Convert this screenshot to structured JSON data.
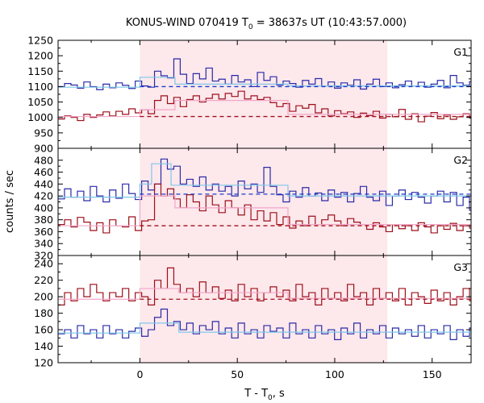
{
  "chart_data": {
    "type": "line",
    "title_main": "KONUS-WIND 070419 T",
    "title_sub": "0",
    "title_rest": " = 38637s UT (10:43:57.000)",
    "xlabel_main": "T - T",
    "xlabel_sub": "0",
    "xlabel_rest": ", s",
    "ylabel": "counts / sec",
    "xlim": [
      -42,
      170
    ],
    "xticks": [
      0,
      50,
      100,
      150
    ],
    "highlight_interval": [
      0,
      127
    ],
    "colors": {
      "blue": "#2a2aa6",
      "red": "#9c0f1a",
      "light_blue": "#7ec7ea",
      "pink": "#f2a6c8",
      "dashed_blue": "#1a3cc8",
      "dashed_red": "#a0111a",
      "highlight": "#fde8ec"
    },
    "panels": [
      {
        "label": "G1",
        "ylim": [
          900,
          1250
        ],
        "yticks": [
          900,
          950,
          1000,
          1050,
          1100,
          1150,
          1200,
          1250
        ],
        "series": [
          {
            "name": "G1 upper",
            "color": "blue",
            "x0": -42,
            "dx": 3.3,
            "values": [
              1100,
              1110,
              1105,
              1095,
              1115,
              1100,
              1090,
              1108,
              1096,
              1112,
              1104,
              1094,
              1118,
              1102,
              1098,
              1150,
              1135,
              1128,
              1190,
              1140,
              1110,
              1142,
              1125,
              1160,
              1118,
              1124,
              1108,
              1136,
              1115,
              1122,
              1100,
              1146,
              1120,
              1132,
              1105,
              1118,
              1110,
              1098,
              1120,
              1108,
              1126,
              1102,
              1115,
              1095,
              1112,
              1104,
              1122,
              1092,
              1108,
              1124,
              1100,
              1112,
              1096,
              1106,
              1118,
              1102,
              1114,
              1098,
              1108,
              1120,
              1096,
              1136,
              1112,
              1104,
              1116,
              1098
            ]
          },
          {
            "name": "G1 lower",
            "color": "red",
            "x0": -42,
            "dx": 3.3,
            "values": [
              995,
              1005,
              1000,
              990,
              1010,
              1000,
              1008,
              1018,
              1005,
              1020,
              1010,
              1028,
              1015,
              1025,
              1012,
              1055,
              1070,
              1045,
              1065,
              1035,
              1058,
              1070,
              1050,
              1062,
              1075,
              1060,
              1078,
              1068,
              1085,
              1060,
              1070,
              1058,
              1065,
              1048,
              1035,
              1045,
              1020,
              1038,
              1030,
              1042,
              1015,
              1028,
              1005,
              1022,
              1012,
              1018,
              1000,
              1014,
              1006,
              1020,
              998,
              1010,
              1002,
              1026,
              994,
              1012,
              986,
              1004,
              1016,
              996,
              1008,
              994,
              1002,
              1012,
              998,
              1018
            ]
          },
          {
            "name": "G1 upper fit",
            "color": "light_blue",
            "x": [
              -42,
              0,
              0,
              18,
              18,
              76,
              76,
              170
            ],
            "values": [
              1098,
              1098,
              1130,
              1130,
              1108,
              1108,
              1102,
              1102
            ]
          },
          {
            "name": "G1 lower fit",
            "color": "pink",
            "x": [
              -42,
              0,
              0,
              18,
              18,
              76,
              76,
              170
            ],
            "values": [
              1003,
              1003,
              1025,
              1025,
              1055,
              1055,
              1010,
              1010
            ]
          },
          {
            "name": "G1 upper background",
            "color": "dashed_blue",
            "dashed": true,
            "x": [
              0,
              170
            ],
            "values": [
              1100,
              1100
            ]
          },
          {
            "name": "G1 lower background",
            "color": "dashed_red",
            "dashed": true,
            "x": [
              0,
              170
            ],
            "values": [
              1003,
              1003
            ]
          }
        ]
      },
      {
        "label": "G2",
        "ylim": [
          320,
          500
        ],
        "yticks": [
          320,
          340,
          360,
          380,
          400,
          420,
          440,
          460,
          480
        ],
        "series": [
          {
            "name": "G2 upper",
            "color": "blue",
            "x0": -42,
            "dx": 3.3,
            "values": [
              415,
              432,
              418,
              428,
              412,
              436,
              420,
              410,
              430,
              416,
              440,
              424,
              414,
              445,
              430,
              440,
              482,
              465,
              470,
              440,
              448,
              436,
              452,
              430,
              440,
              428,
              436,
              420,
              445,
              432,
              440,
              426,
              468,
              436,
              422,
              410,
              428,
              418,
              434,
              420,
              425,
              412,
              430,
              418,
              426,
              410,
              424,
              436,
              418,
              412,
              428,
              404,
              420,
              430,
              414,
              426,
              418,
              408,
              420,
              428,
              410,
              426,
              404,
              418,
              396,
              420
            ]
          },
          {
            "name": "G2 lower",
            "color": "red",
            "x0": -42,
            "dx": 3.3,
            "values": [
              372,
              380,
              368,
              384,
              376,
              362,
              375,
              358,
              380,
              370,
              368,
              385,
              362,
              378,
              380,
              440,
              420,
              432,
              415,
              400,
              422,
              410,
              395,
              420,
              405,
              392,
              412,
              400,
              388,
              405,
              380,
              395,
              378,
              392,
              372,
              385,
              366,
              378,
              370,
              386,
              372,
              380,
              388,
              378,
              370,
              382,
              376,
              372,
              364,
              375,
              368,
              360,
              372,
              365,
              370,
              362,
              375,
              368,
              358,
              370,
              364,
              374,
              362,
              370,
              366,
              375
            ]
          },
          {
            "name": "G2 upper fit",
            "color": "light_blue",
            "x": [
              -42,
              0,
              0,
              6,
              6,
              16,
              16,
              76,
              76,
              170
            ],
            "values": [
              418,
              418,
              440,
              440,
              474,
              474,
              438,
              438,
              420,
              420
            ]
          },
          {
            "name": "G2 lower fit",
            "color": "pink",
            "x": [
              -42,
              0,
              0,
              18,
              18,
              76,
              76,
              170
            ],
            "values": [
              370,
              370,
              420,
              420,
              400,
              400,
              372,
              372
            ]
          },
          {
            "name": "G2 upper background",
            "color": "dashed_blue",
            "dashed": true,
            "x": [
              0,
              170
            ],
            "values": [
              423,
              423
            ]
          },
          {
            "name": "G2 lower background",
            "color": "dashed_red",
            "dashed": true,
            "x": [
              0,
              170
            ],
            "values": [
              370,
              370
            ]
          }
        ]
      },
      {
        "label": "G3",
        "ylim": [
          120,
          250
        ],
        "yticks": [
          120,
          140,
          160,
          180,
          200,
          220,
          240
        ],
        "series": [
          {
            "name": "G3 upper",
            "color": "red",
            "x0": -42,
            "dx": 3.3,
            "values": [
              190,
              205,
              195,
              210,
              200,
              215,
              205,
              195,
              205,
              200,
              210,
              195,
              205,
              200,
              190,
              220,
              210,
              235,
              215,
              205,
              210,
              200,
              218,
              205,
              212,
              198,
              208,
              195,
              215,
              200,
              210,
              195,
              205,
              212,
              200,
              208,
              195,
              215,
              200,
              205,
              190,
              210,
              198,
              205,
              195,
              215,
              200,
              205,
              190,
              210,
              198,
              205,
              195,
              210,
              190,
              205,
              200,
              192,
              208,
              195,
              205,
              190,
              200,
              210,
              195,
              205
            ]
          },
          {
            "name": "G3 lower",
            "color": "blue",
            "x0": -42,
            "dx": 3.3,
            "values": [
              155,
              160,
              150,
              165,
              155,
              160,
              150,
              165,
              155,
              160,
              150,
              158,
              162,
              152,
              160,
              175,
              185,
              165,
              170,
              160,
              168,
              155,
              165,
              160,
              170,
              155,
              162,
              150,
              168,
              155,
              160,
              150,
              165,
              158,
              162,
              150,
              168,
              155,
              160,
              150,
              165,
              155,
              160,
              148,
              162,
              155,
              168,
              150,
              160,
              155,
              165,
              150,
              162,
              155,
              160,
              152,
              165,
              150,
              160,
              155,
              165,
              148,
              160,
              152,
              162,
              155
            ]
          },
          {
            "name": "G3 upper fit",
            "color": "pink",
            "x": [
              -42,
              0,
              0,
              20,
              20,
              76,
              76,
              170
            ],
            "values": [
              197,
              197,
              210,
              210,
              205,
              205,
              198,
              198
            ]
          },
          {
            "name": "G3 lower fit",
            "color": "light_blue",
            "x": [
              -42,
              0,
              0,
              20,
              20,
              170
            ],
            "values": [
              156,
              156,
              168,
              168,
              157,
              157
            ]
          },
          {
            "name": "G3 upper background",
            "color": "dashed_red",
            "dashed": true,
            "x": [
              0,
              170
            ],
            "values": [
              197,
              197
            ]
          }
        ]
      }
    ]
  }
}
